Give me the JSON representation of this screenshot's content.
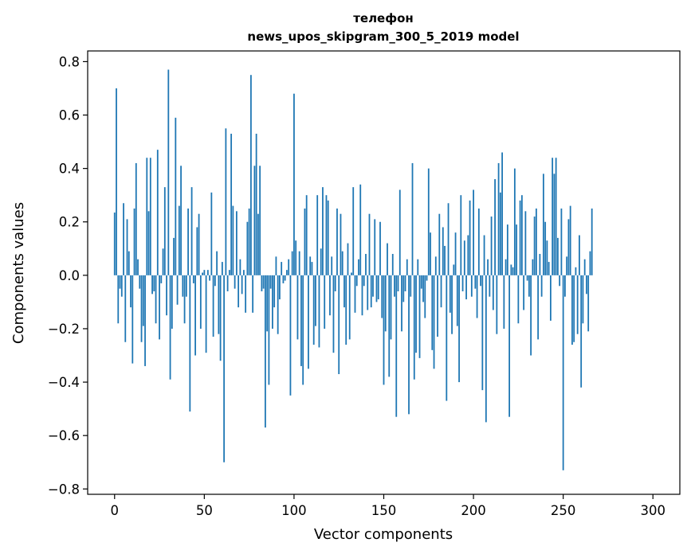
{
  "chart_data": {
    "type": "bar",
    "title_line1": "телефон",
    "title_line2": "news_upos_skipgram_300_5_2019 model",
    "xlabel": "Vector components",
    "ylabel": "Components values",
    "xlim": [
      -15,
      315
    ],
    "ylim": [
      -0.82,
      0.84
    ],
    "x_ticks": [
      0,
      50,
      100,
      150,
      200,
      250,
      300
    ],
    "x_tick_labels": [
      "0",
      "50",
      "100",
      "150",
      "200",
      "250",
      "300"
    ],
    "y_ticks": [
      -0.8,
      -0.6,
      -0.4,
      -0.2,
      0.0,
      0.2,
      0.4,
      0.6,
      0.8
    ],
    "y_tick_labels": [
      "−0.8",
      "−0.6",
      "−0.4",
      "−0.2",
      "0.0",
      "0.2",
      "0.4",
      "0.6",
      "0.8"
    ],
    "bar_color": "#1f77b4",
    "grid": false,
    "values": [
      0.235,
      0.7,
      -0.18,
      -0.05,
      -0.08,
      0.27,
      -0.25,
      0.21,
      0.09,
      -0.12,
      -0.33,
      0.25,
      0.42,
      0.06,
      -0.05,
      -0.25,
      -0.19,
      -0.34,
      0.44,
      0.24,
      0.44,
      -0.07,
      -0.06,
      -0.18,
      0.47,
      -0.24,
      -0.03,
      0.1,
      0.33,
      -0.15,
      0.77,
      -0.39,
      -0.2,
      0.14,
      0.59,
      -0.11,
      0.26,
      0.41,
      -0.08,
      -0.18,
      -0.08,
      0.25,
      -0.51,
      0.33,
      -0.03,
      -0.3,
      0.18,
      0.23,
      -0.2,
      0.01,
      0.02,
      -0.29,
      0.02,
      -0.02,
      0.31,
      -0.23,
      -0.04,
      0.09,
      -0.22,
      -0.32,
      0.05,
      -0.7,
      0.55,
      -0.06,
      0.02,
      0.53,
      0.26,
      -0.05,
      0.24,
      -0.12,
      0.06,
      -0.07,
      0.02,
      -0.14,
      0.2,
      0.25,
      0.75,
      -0.14,
      0.41,
      0.53,
      0.23,
      0.41,
      -0.06,
      -0.05,
      -0.57,
      -0.21,
      -0.41,
      -0.05,
      -0.2,
      -0.12,
      0.07,
      -0.22,
      -0.09,
      0.05,
      -0.03,
      -0.02,
      0.02,
      0.06,
      -0.45,
      0.09,
      0.68,
      0.13,
      -0.24,
      0.09,
      -0.34,
      -0.41,
      0.25,
      0.3,
      -0.35,
      0.07,
      0.05,
      -0.26,
      -0.19,
      0.3,
      -0.27,
      0.1,
      0.33,
      -0.2,
      0.3,
      0.28,
      -0.15,
      0.07,
      -0.29,
      -0.06,
      0.25,
      -0.37,
      0.23,
      0.09,
      -0.12,
      -0.26,
      0.12,
      -0.24,
      0.01,
      0.33,
      -0.14,
      -0.04,
      0.06,
      0.34,
      -0.15,
      -0.04,
      0.08,
      -0.13,
      0.23,
      -0.12,
      -0.08,
      0.21,
      -0.1,
      -0.09,
      0.2,
      -0.16,
      -0.41,
      -0.21,
      0.12,
      -0.38,
      -0.24,
      0.08,
      -0.08,
      -0.53,
      -0.06,
      0.32,
      -0.21,
      -0.1,
      -0.06,
      0.06,
      -0.52,
      -0.08,
      0.42,
      -0.39,
      -0.29,
      0.06,
      -0.31,
      -0.05,
      -0.1,
      -0.16,
      -0.02,
      0.4,
      0.16,
      -0.28,
      -0.35,
      0.07,
      -0.23,
      0.23,
      -0.12,
      0.18,
      0.11,
      -0.47,
      0.27,
      -0.14,
      -0.22,
      0.04,
      0.16,
      -0.19,
      -0.4,
      0.3,
      -0.06,
      0.13,
      -0.09,
      0.15,
      0.28,
      -0.08,
      0.32,
      -0.05,
      -0.16,
      0.25,
      -0.04,
      -0.43,
      0.15,
      -0.55,
      0.06,
      -0.08,
      0.22,
      -0.13,
      0.36,
      -0.22,
      0.42,
      0.31,
      0.46,
      -0.2,
      0.06,
      0.19,
      -0.53,
      0.04,
      0.03,
      0.4,
      0.19,
      -0.18,
      0.28,
      0.3,
      -0.13,
      0.24,
      -0.02,
      -0.08,
      -0.3,
      0.06,
      0.22,
      0.25,
      -0.24,
      0.08,
      -0.08,
      0.38,
      0.2,
      0.13,
      0.05,
      -0.17,
      0.44,
      0.38,
      0.44,
      0.14,
      -0.04,
      0.25,
      -0.73,
      -0.08,
      0.07,
      0.21,
      0.26,
      -0.26,
      -0.25,
      0.03,
      -0.22,
      0.15,
      -0.42,
      -0.18,
      0.06,
      -0.07,
      -0.21,
      0.09,
      0.25
    ]
  }
}
